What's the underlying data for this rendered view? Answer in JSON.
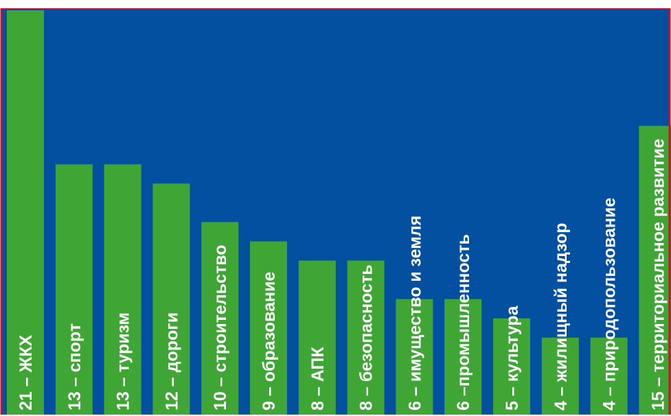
{
  "chart_data": {
    "type": "bar",
    "orientation": "vertical",
    "labels_inside_bars": "rotated",
    "categories": [
      "ЖКХ",
      "спорт",
      "туризм",
      "дороги",
      "строительство",
      "образование",
      "АПК",
      "безопасность",
      "имущество и земля",
      "промышленность",
      "культура",
      "жилищный надзор",
      "природопользование",
      "территориальное развитие"
    ],
    "values": [
      21,
      13,
      13,
      12,
      10,
      9,
      8,
      8,
      6,
      6,
      5,
      4,
      4,
      15
    ],
    "bar_labels": [
      "21 – ЖКХ",
      "13 – спорт",
      "13 – туризм",
      "12 – дороги",
      "10 – строительство",
      "9 – образование",
      "8 – АПК",
      "8 – безопасность",
      "6 – имущество и земля",
      "6 –промышленность",
      "5 – культура",
      "4 – жилищный надзор",
      "4 – природопользование",
      "15 – территориальное развитие"
    ],
    "ylim": [
      0,
      21
    ],
    "grid": false,
    "colors": {
      "plot_background": "#0450a0",
      "bar": "#3fa535",
      "frame": "#c8102e",
      "label": "#ffffff"
    }
  }
}
